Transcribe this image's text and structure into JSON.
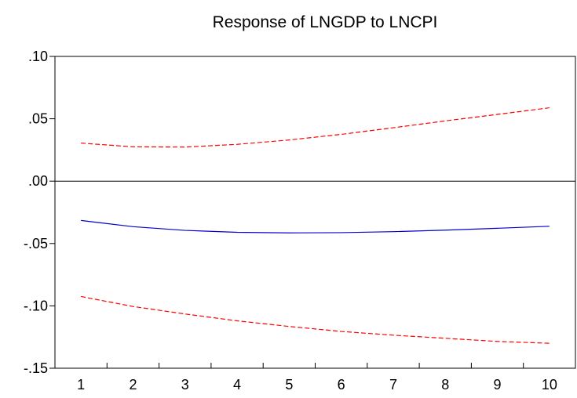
{
  "chart_data": {
    "type": "line",
    "title": "Response of LNGDP to LNCPI",
    "xlabel": "",
    "ylabel": "",
    "x": [
      1,
      2,
      3,
      4,
      5,
      6,
      7,
      8,
      9,
      10
    ],
    "x_tick_labels": [
      "1",
      "2",
      "3",
      "4",
      "5",
      "6",
      "7",
      "8",
      "9",
      "10"
    ],
    "ylim": [
      -0.15,
      0.1
    ],
    "y_ticks": [
      0.1,
      0.05,
      0.0,
      -0.05,
      -0.1,
      -0.15
    ],
    "y_tick_labels": [
      ".10",
      ".05",
      ".00",
      "-.05",
      "-.10",
      "-.15"
    ],
    "zero_line": true,
    "grid": false,
    "legend": "none",
    "series": [
      {
        "values": [
          0.0305,
          0.0275,
          0.0273,
          0.0295,
          0.033,
          0.0375,
          0.0428,
          0.0483,
          0.0535,
          0.0588
        ],
        "color": "#ff0000",
        "style": "dashed"
      },
      {
        "values": [
          -0.0315,
          -0.0365,
          -0.0395,
          -0.041,
          -0.0415,
          -0.0413,
          -0.0405,
          -0.0393,
          -0.0378,
          -0.0362
        ],
        "color": "#0000cc",
        "style": "solid"
      },
      {
        "values": [
          -0.0925,
          -0.1005,
          -0.1065,
          -0.112,
          -0.1165,
          -0.1205,
          -0.1235,
          -0.126,
          -0.1285,
          -0.13
        ],
        "color": "#ff0000",
        "style": "dashed"
      }
    ]
  }
}
